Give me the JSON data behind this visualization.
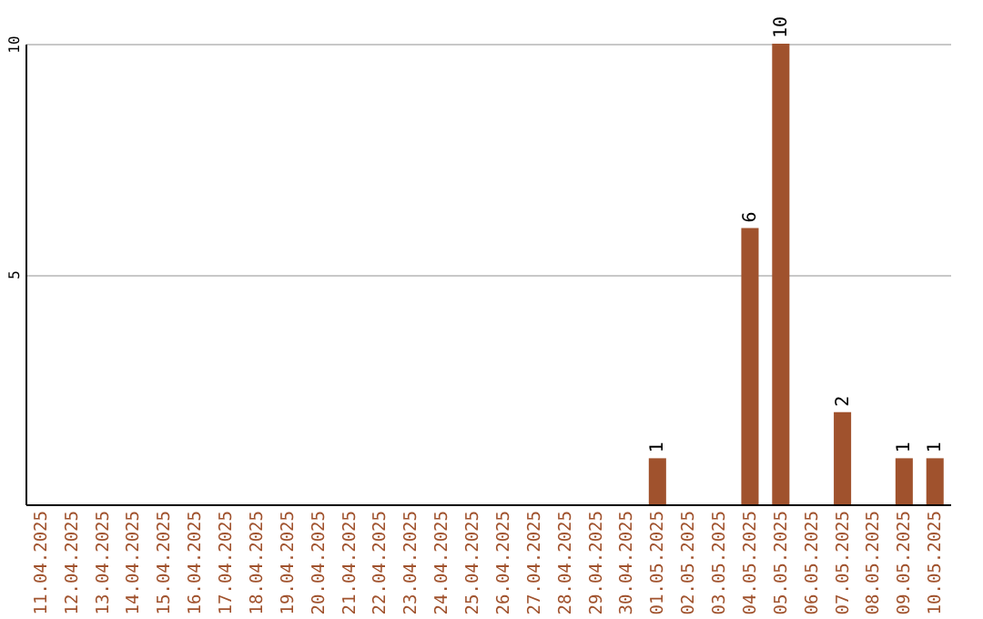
{
  "chart_data": {
    "type": "bar",
    "categories": [
      "11.04.2025",
      "12.04.2025",
      "13.04.2025",
      "14.04.2025",
      "15.04.2025",
      "16.04.2025",
      "17.04.2025",
      "18.04.2025",
      "19.04.2025",
      "20.04.2025",
      "21.04.2025",
      "22.04.2025",
      "23.04.2025",
      "24.04.2025",
      "25.04.2025",
      "26.04.2025",
      "27.04.2025",
      "28.04.2025",
      "29.04.2025",
      "30.04.2025",
      "01.05.2025",
      "02.05.2025",
      "03.05.2025",
      "04.05.2025",
      "05.05.2025",
      "06.05.2025",
      "07.05.2025",
      "08.05.2025",
      "09.05.2025",
      "10.05.2025"
    ],
    "values": [
      0,
      0,
      0,
      0,
      0,
      0,
      0,
      0,
      0,
      0,
      0,
      0,
      0,
      0,
      0,
      0,
      0,
      0,
      0,
      0,
      1,
      0,
      0,
      6,
      10,
      0,
      2,
      0,
      1,
      1
    ],
    "value_labels": [
      null,
      null,
      null,
      null,
      null,
      null,
      null,
      null,
      null,
      null,
      null,
      null,
      null,
      null,
      null,
      null,
      null,
      null,
      null,
      null,
      "1",
      null,
      null,
      "6",
      "10",
      null,
      "2",
      null,
      "1",
      "1"
    ],
    "color": "#a0522d",
    "ylim": [
      0,
      10
    ],
    "yticks": [
      5,
      10
    ],
    "grid": "y"
  }
}
